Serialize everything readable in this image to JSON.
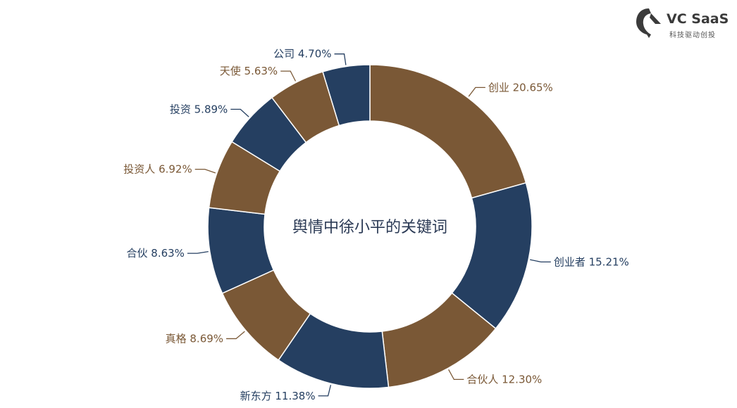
{
  "brand": {
    "name": "VC SaaS",
    "tagline": "科技驱动创投",
    "mark_icon": "vc-saas-logo-icon",
    "color": "#3b3b3b"
  },
  "chart_data": {
    "type": "pie",
    "variant": "donut",
    "title": "舆情中徐小平的关键词",
    "colors": {
      "brown": "#7a5836",
      "navy": "#253f61"
    },
    "slices": [
      {
        "label": "创业",
        "value": 20.65,
        "text": "创业 20.65%",
        "color": "#7a5836"
      },
      {
        "label": "创业者",
        "value": 15.21,
        "text": "创业者 15.21%",
        "color": "#253f61"
      },
      {
        "label": "合伙人",
        "value": 12.3,
        "text": "合伙人 12.30%",
        "color": "#7a5836"
      },
      {
        "label": "新东方",
        "value": 11.38,
        "text": "新东方 11.38%",
        "color": "#253f61"
      },
      {
        "label": "真格",
        "value": 8.69,
        "text": "真格 8.69%",
        "color": "#7a5836"
      },
      {
        "label": "合伙",
        "value": 8.63,
        "text": "合伙 8.63%",
        "color": "#253f61"
      },
      {
        "label": "投资人",
        "value": 6.92,
        "text": "投资人 6.92%",
        "color": "#7a5836"
      },
      {
        "label": "投资",
        "value": 5.89,
        "text": "投资 5.89%",
        "color": "#253f61"
      },
      {
        "label": "天使",
        "value": 5.63,
        "text": "天使 5.63%",
        "color": "#7a5836"
      },
      {
        "label": "公司",
        "value": 4.7,
        "text": "公司 4.70%",
        "color": "#253f61"
      }
    ]
  }
}
